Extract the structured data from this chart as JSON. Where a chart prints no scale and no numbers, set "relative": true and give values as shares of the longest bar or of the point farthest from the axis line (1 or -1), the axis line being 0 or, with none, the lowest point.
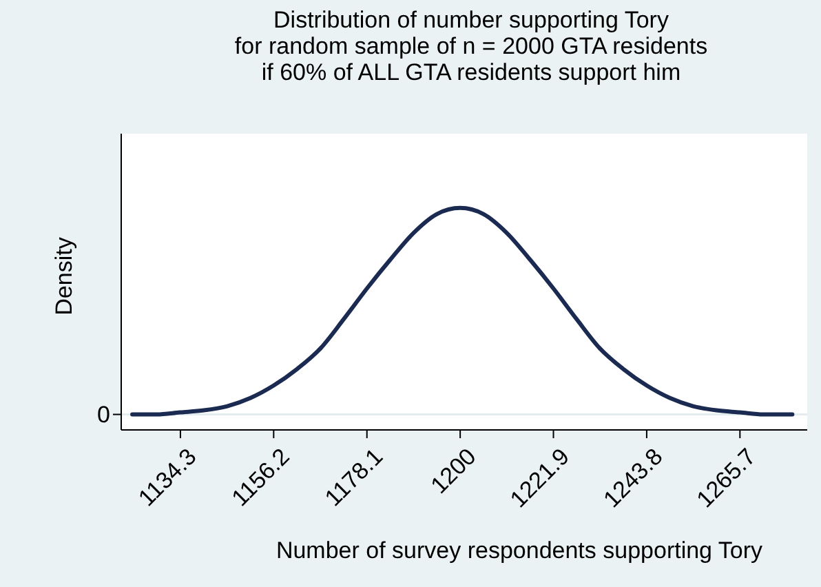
{
  "chart_data": {
    "type": "line",
    "title": "Distribution of number supporting Tory\nfor random sample of n = 2000 GTA residents\nif 60% of ALL GTA residents support him",
    "xlabel": "Number of survey respondents supporting Tory",
    "ylabel": "Density",
    "relative": true,
    "xlim": [
      1120.4,
      1281.5
    ],
    "xticks": [
      1134.3,
      1156.2,
      1178.1,
      1200,
      1221.9,
      1243.8,
      1265.7
    ],
    "x": [
      1123,
      1128.7,
      1134.3,
      1139.8,
      1145.3,
      1150.8,
      1156.2,
      1161.7,
      1167.2,
      1172.6,
      1178.1,
      1183.6,
      1189.1,
      1194.5,
      1200,
      1205.5,
      1210.9,
      1216.4,
      1221.9,
      1227.4,
      1232.8,
      1238.3,
      1243.8,
      1249.2,
      1254.7,
      1260.2,
      1265.7,
      1271.2,
      1278
    ],
    "series": [
      {
        "color": "#1a2a50",
        "values": [
          0.0,
          0.0,
          0.01,
          0.02,
          0.04,
          0.08,
          0.14,
          0.22,
          0.32,
          0.46,
          0.61,
          0.75,
          0.88,
          0.97,
          1,
          0.97,
          0.88,
          0.75,
          0.61,
          0.46,
          0.32,
          0.22,
          0.14,
          0.08,
          0.04,
          0.02,
          0.01,
          0.0,
          0.0
        ]
      }
    ],
    "ref_lines": [
      {
        "axis": "y",
        "value": 0,
        "label": "0",
        "color": "#e4ecee"
      }
    ],
    "grid": false
  }
}
